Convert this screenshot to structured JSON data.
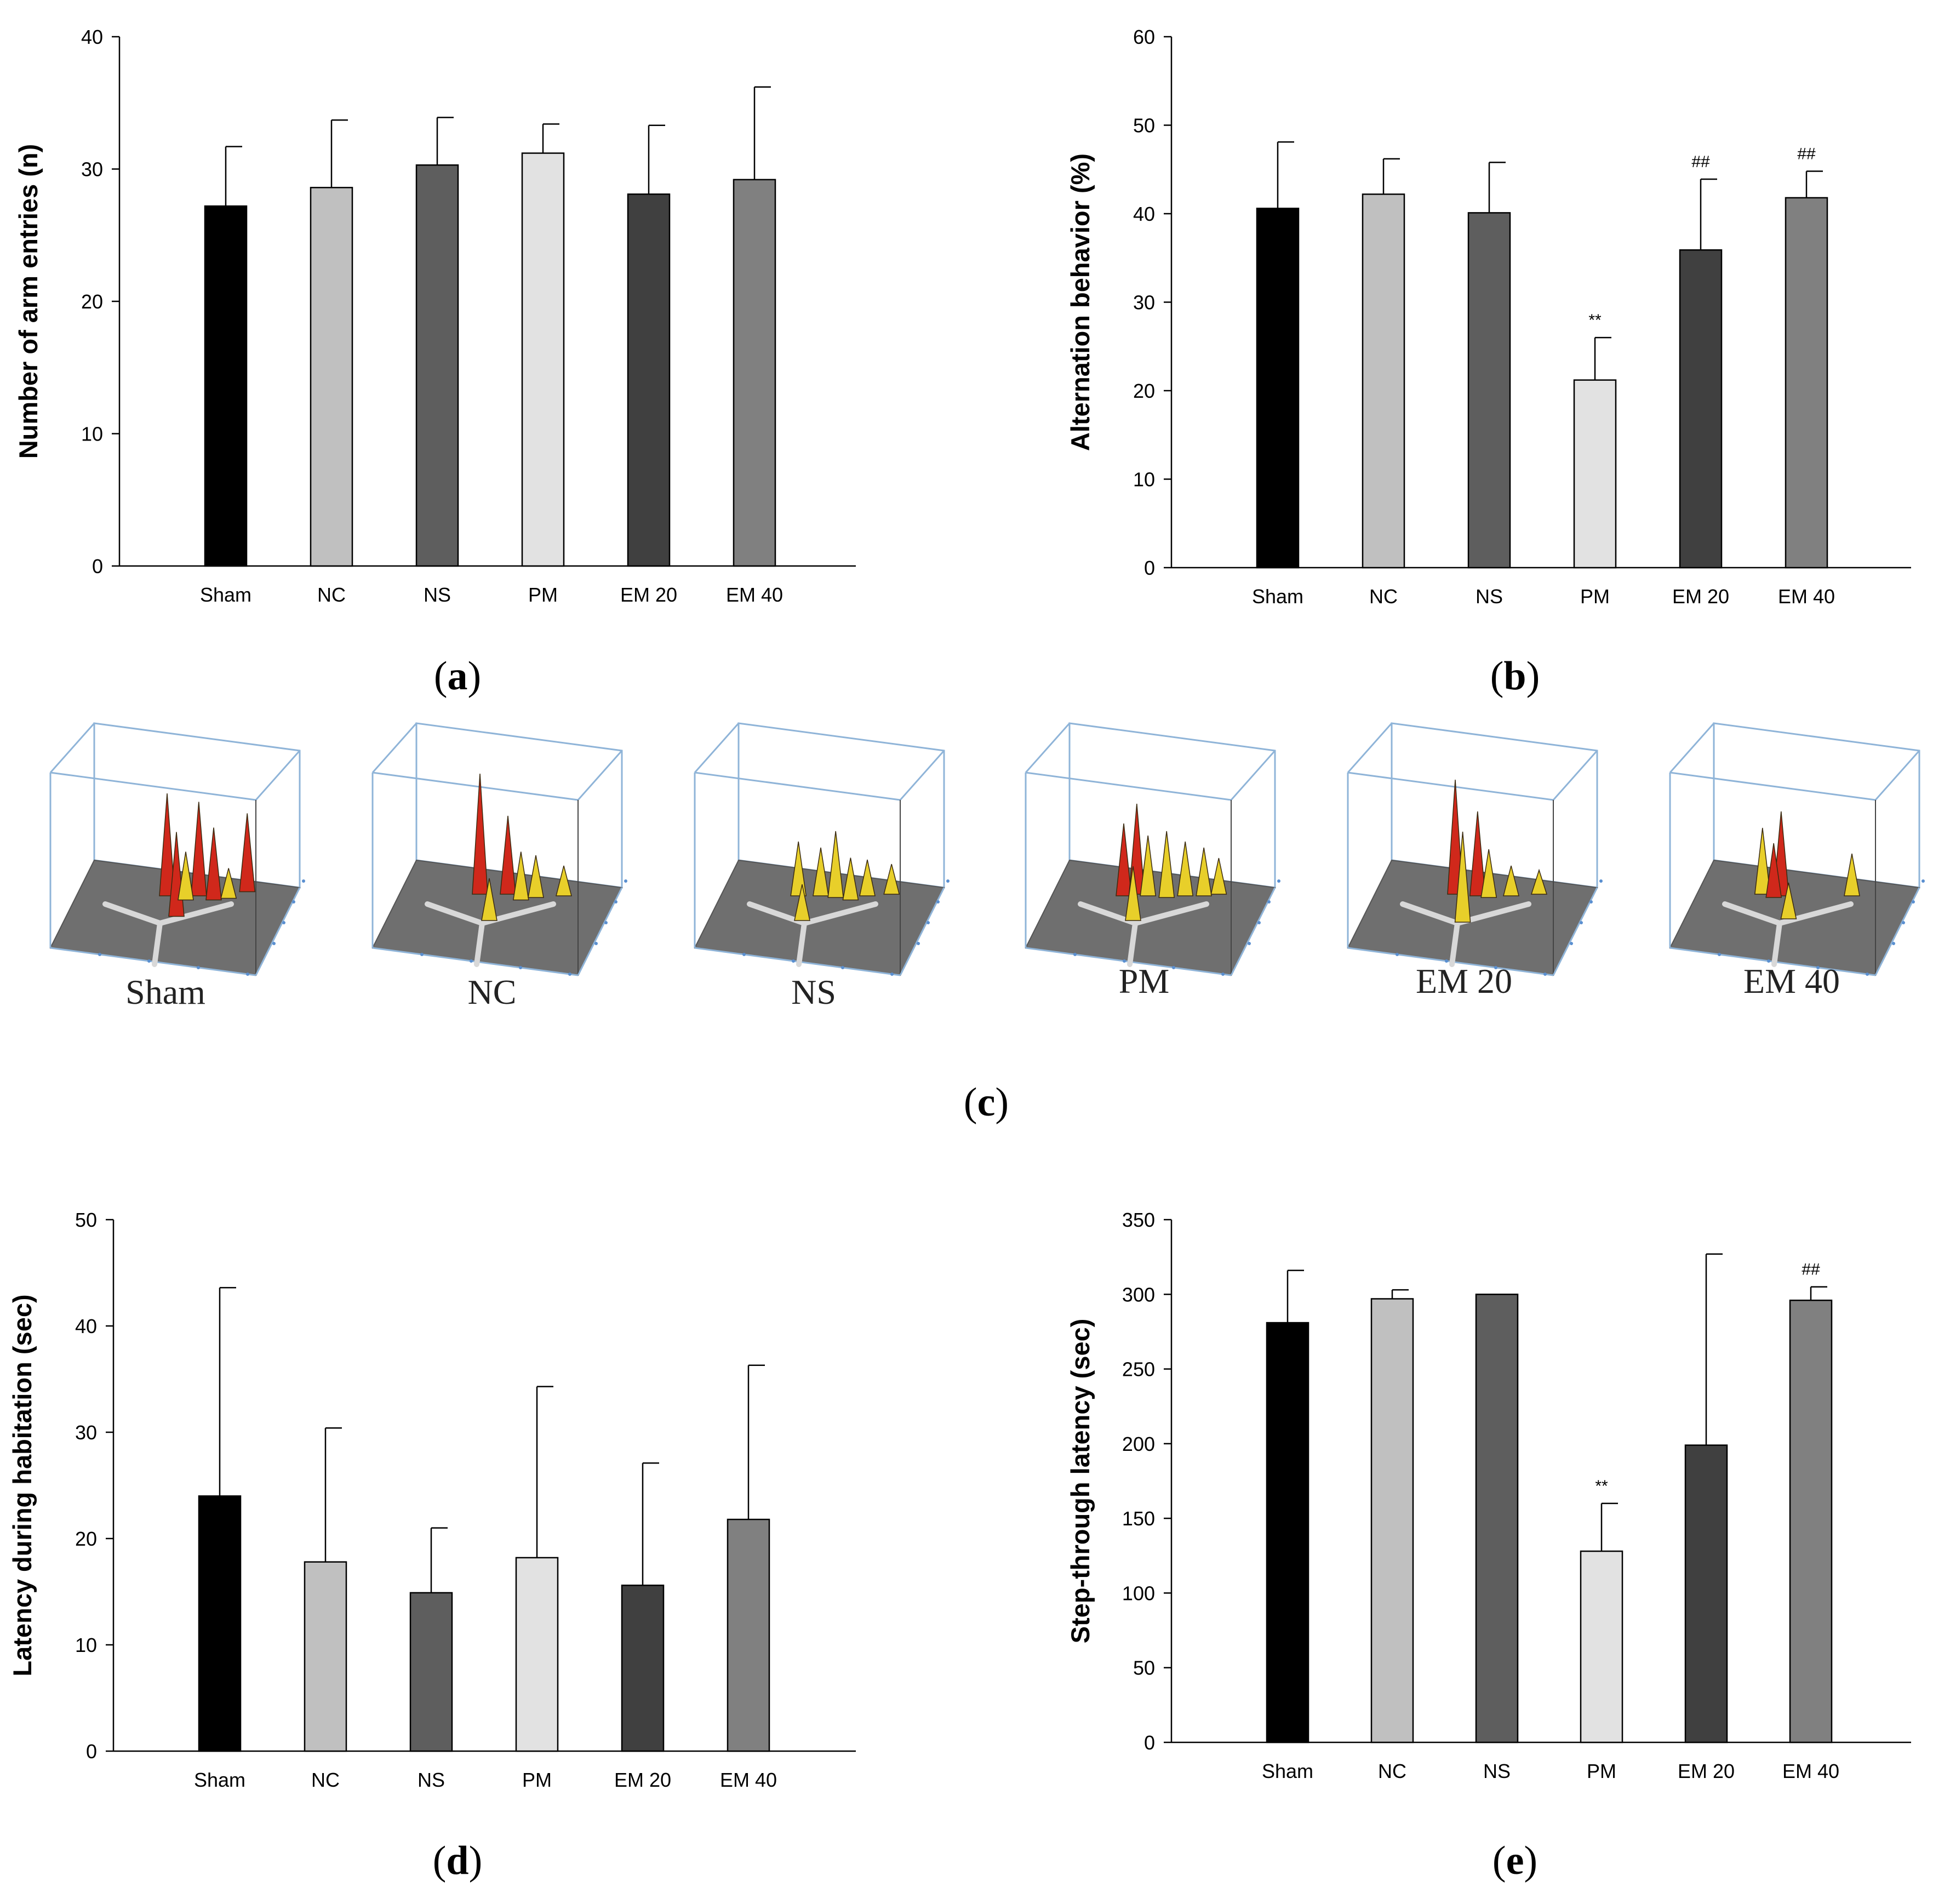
{
  "categories": [
    "Sham",
    "NC",
    "NS",
    "PM",
    "EM 20",
    "EM 40"
  ],
  "colors": [
    "#000000",
    "#c0c0c0",
    "#5e5e5e",
    "#e2e2e2",
    "#404040",
    "#808080"
  ],
  "chart_data": [
    {
      "id": "a",
      "type": "bar",
      "panel_label": "a",
      "ylabel": "Number of arm entries (n)",
      "ylim": [
        0,
        40
      ],
      "yticks": [
        0,
        10,
        20,
        30,
        40
      ],
      "categories": [
        "Sham",
        "NC",
        "NS",
        "PM",
        "EM 20",
        "EM 40"
      ],
      "values": [
        27.2,
        28.6,
        30.3,
        31.2,
        28.1,
        29.2
      ],
      "errors": [
        4.5,
        5.1,
        3.6,
        2.2,
        5.2,
        7.0
      ],
      "annotations": [
        "",
        "",
        "",
        "",
        "",
        ""
      ]
    },
    {
      "id": "b",
      "type": "bar",
      "panel_label": "b",
      "ylabel": "Alternation behavior (%)",
      "ylim": [
        0,
        60
      ],
      "yticks": [
        0,
        10,
        20,
        30,
        40,
        50,
        60
      ],
      "categories": [
        "Sham",
        "NC",
        "NS",
        "PM",
        "EM 20",
        "EM 40"
      ],
      "values": [
        40.6,
        42.2,
        40.1,
        21.2,
        35.9,
        41.8
      ],
      "errors": [
        7.5,
        4.0,
        5.7,
        4.8,
        8.0,
        3.0
      ],
      "annotations": [
        "",
        "",
        "",
        "**",
        "##",
        "##"
      ]
    },
    {
      "id": "d",
      "type": "bar",
      "panel_label": "d",
      "ylabel": "Latency during habitation (sec)",
      "ylim": [
        0,
        50
      ],
      "yticks": [
        0,
        10,
        20,
        30,
        40,
        50
      ],
      "categories": [
        "Sham",
        "NC",
        "NS",
        "PM",
        "EM 20",
        "EM 40"
      ],
      "values": [
        24.0,
        17.8,
        14.9,
        18.2,
        15.6,
        21.8
      ],
      "errors": [
        19.6,
        12.6,
        6.1,
        16.1,
        11.5,
        14.5
      ],
      "annotations": [
        "",
        "",
        "",
        "",
        "",
        ""
      ]
    },
    {
      "id": "e",
      "type": "bar",
      "panel_label": "e",
      "ylabel": "Step-through latency (sec)",
      "ylim": [
        0,
        350
      ],
      "yticks": [
        0,
        50,
        100,
        150,
        200,
        250,
        300,
        350
      ],
      "categories": [
        "Sham",
        "NC",
        "NS",
        "PM",
        "EM 20",
        "EM 40"
      ],
      "values": [
        281,
        297,
        300,
        128,
        199,
        296
      ],
      "errors": [
        35,
        6,
        0,
        32,
        128,
        9
      ],
      "annotations": [
        "",
        "",
        "",
        "**",
        "",
        "##"
      ]
    }
  ],
  "panel_c": {
    "panel_label": "c",
    "images": [
      {
        "label": "Sham",
        "peaks": [
          [
            0.45,
            0.3,
            0.85,
            "red"
          ],
          [
            0.62,
            0.3,
            0.78,
            "red"
          ],
          [
            0.7,
            0.35,
            0.6,
            "red"
          ],
          [
            0.88,
            0.25,
            0.65,
            "red"
          ],
          [
            0.5,
            0.55,
            0.7,
            "red"
          ],
          [
            0.55,
            0.35,
            0.4,
            "yellow"
          ],
          [
            0.78,
            0.33,
            0.25,
            "yellow"
          ]
        ]
      },
      {
        "label": "NC",
        "peaks": [
          [
            0.4,
            0.28,
            1.0,
            "red"
          ],
          [
            0.55,
            0.28,
            0.65,
            "red"
          ],
          [
            0.62,
            0.35,
            0.4,
            "yellow"
          ],
          [
            0.7,
            0.32,
            0.35,
            "yellow"
          ],
          [
            0.45,
            0.6,
            0.35,
            "yellow"
          ],
          [
            0.85,
            0.3,
            0.25,
            "yellow"
          ]
        ]
      },
      {
        "label": "NS",
        "peaks": [
          [
            0.38,
            0.3,
            0.45,
            "yellow"
          ],
          [
            0.5,
            0.3,
            0.4,
            "yellow"
          ],
          [
            0.58,
            0.32,
            0.55,
            "yellow"
          ],
          [
            0.66,
            0.35,
            0.35,
            "yellow"
          ],
          [
            0.75,
            0.3,
            0.3,
            "yellow"
          ],
          [
            0.4,
            0.6,
            0.3,
            "yellow"
          ],
          [
            0.88,
            0.28,
            0.25,
            "yellow"
          ]
        ]
      },
      {
        "label": "PM",
        "peaks": [
          [
            0.35,
            0.3,
            0.6,
            "red"
          ],
          [
            0.42,
            0.28,
            0.75,
            "red"
          ],
          [
            0.48,
            0.3,
            0.5,
            "yellow"
          ],
          [
            0.58,
            0.32,
            0.55,
            "yellow"
          ],
          [
            0.68,
            0.3,
            0.45,
            "yellow"
          ],
          [
            0.78,
            0.3,
            0.4,
            "yellow"
          ],
          [
            0.4,
            0.6,
            0.45,
            "yellow"
          ],
          [
            0.86,
            0.28,
            0.3,
            "yellow"
          ]
        ]
      },
      {
        "label": "EM 20",
        "peaks": [
          [
            0.4,
            0.28,
            0.95,
            "red"
          ],
          [
            0.52,
            0.3,
            0.7,
            "red"
          ],
          [
            0.58,
            0.32,
            0.4,
            "yellow"
          ],
          [
            0.44,
            0.62,
            0.75,
            "yellow"
          ],
          [
            0.7,
            0.3,
            0.25,
            "yellow"
          ],
          [
            0.85,
            0.28,
            0.2,
            "yellow"
          ]
        ]
      },
      {
        "label": "EM 40",
        "peaks": [
          [
            0.32,
            0.28,
            0.55,
            "yellow"
          ],
          [
            0.42,
            0.3,
            0.7,
            "red"
          ],
          [
            0.38,
            0.32,
            0.45,
            "red"
          ],
          [
            0.46,
            0.58,
            0.3,
            "yellow"
          ],
          [
            0.8,
            0.3,
            0.35,
            "yellow"
          ]
        ]
      }
    ]
  }
}
